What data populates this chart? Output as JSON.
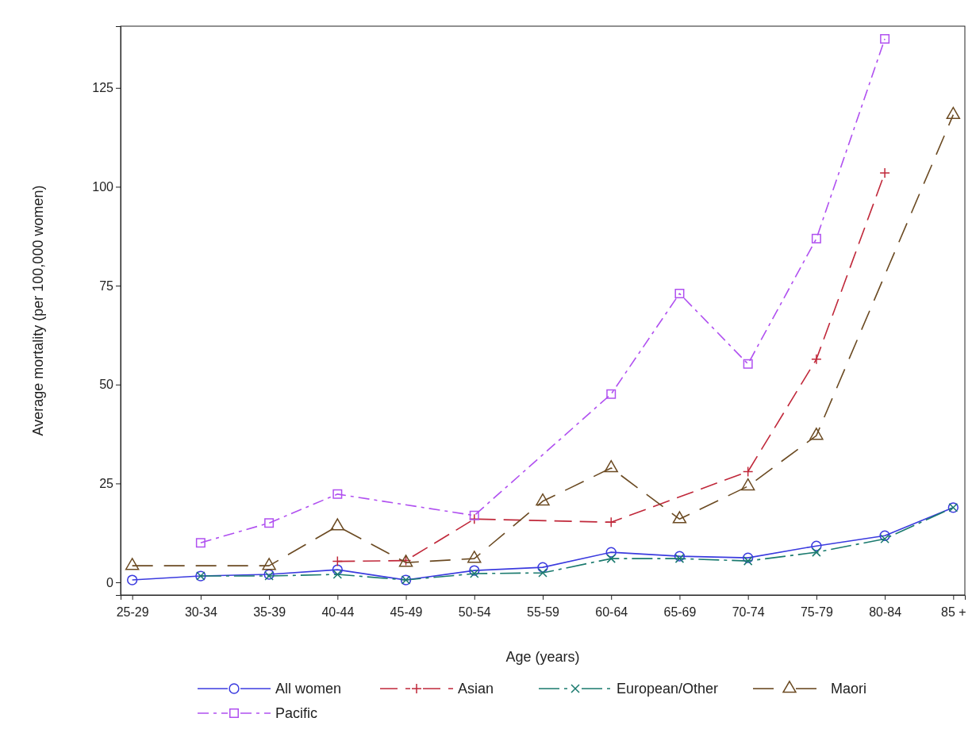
{
  "chart_data": {
    "type": "line",
    "xlabel": "Age (years)",
    "ylabel": "Average mortality (per 100,000 women)",
    "categories": [
      "25-29",
      "30-34",
      "35-39",
      "40-44",
      "45-49",
      "50-54",
      "55-59",
      "60-64",
      "65-69",
      "70-74",
      "75-79",
      "80-84",
      "85 +"
    ],
    "ylim": [
      -3.2,
      140.6
    ],
    "yticks": [
      0,
      25,
      50,
      75,
      100,
      125
    ],
    "grid": false,
    "legend": "bottom",
    "series": [
      {
        "name": "All women",
        "color": "#3b3bdf",
        "marker": "circle",
        "line_style": "solid",
        "values": [
          0.6,
          1.6,
          2.0,
          3.2,
          0.6,
          3.0,
          3.8,
          7.6,
          6.6,
          6.2,
          9.2,
          11.8,
          18.9
        ]
      },
      {
        "name": "Asian",
        "color": "#c0283a",
        "marker": "plus",
        "line_style": "dashed",
        "values": [
          null,
          null,
          null,
          5.3,
          5.5,
          16,
          null,
          15.2,
          null,
          28,
          56.4,
          103.5,
          null
        ]
      },
      {
        "name": "European/Other",
        "color": "#1a7a6e",
        "marker": "cross",
        "line_style": "dashed",
        "values": [
          null,
          1.6,
          1.6,
          2.0,
          0.6,
          2.2,
          2.4,
          6.0,
          6.0,
          5.4,
          7.6,
          11.0,
          18.9
        ]
      },
      {
        "name": "Maori",
        "color": "#6b4a22",
        "marker": "triangle",
        "line_style": "dashed",
        "values": [
          4.2,
          null,
          4.2,
          14.2,
          5.0,
          6.0,
          20.5,
          28.9,
          16,
          24.3,
          37.1,
          null,
          118.2
        ]
      },
      {
        "name": "Pacific",
        "color": "#b050f0",
        "marker": "square",
        "line_style": "dashed",
        "values": [
          null,
          10,
          15,
          22.3,
          null,
          16.9,
          null,
          47.6,
          73,
          55.2,
          86.9,
          137.4,
          null
        ]
      }
    ]
  }
}
